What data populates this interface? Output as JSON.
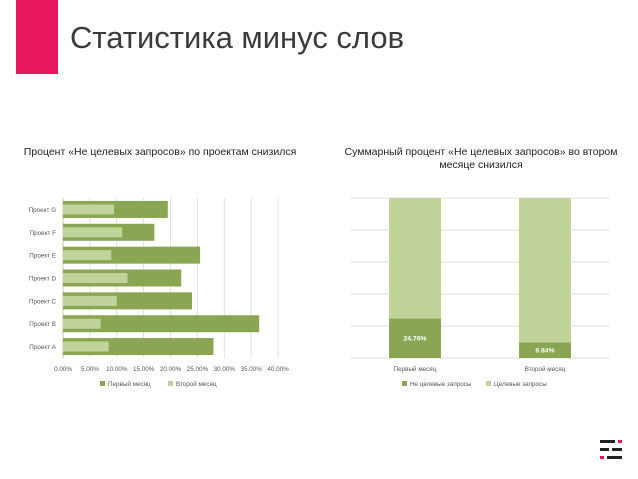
{
  "slide": {
    "title": "Статистика минус слов"
  },
  "colors": {
    "accent": "#e8175d",
    "dark_green": "#8aa653",
    "light_green": "#c0d39a"
  },
  "chart_data": [
    {
      "type": "bar",
      "orientation": "horizontal",
      "title": "Процент «Не целевых запросов» по проектам снизился",
      "categories": [
        "Проект A",
        "Проект B",
        "Проект C",
        "Проект D",
        "Проект E",
        "Проект F",
        "Проект G"
      ],
      "series": [
        {
          "name": "Первый месяц",
          "values": [
            28.0,
            36.5,
            24.0,
            22.0,
            25.5,
            17.0,
            19.5
          ]
        },
        {
          "name": "Второй месяц",
          "values": [
            8.5,
            7.0,
            10.0,
            12.0,
            9.0,
            11.0,
            9.5
          ]
        }
      ],
      "xlim": [
        0,
        40
      ],
      "x_ticks": [
        "0.00%",
        "5.00%",
        "10.00%",
        "15.00%",
        "20.00%",
        "25.00%",
        "30.00%",
        "35.00%",
        "40.00%"
      ],
      "grid": true,
      "legend": "bottom"
    },
    {
      "type": "bar",
      "stacked": true,
      "title": "Суммарный процент «Не целевых запросов» во втором месяце снизился",
      "categories": [
        "Первый месяц",
        "Второй месяц"
      ],
      "series": [
        {
          "name": "Не целевые запросы",
          "values": [
            24.76,
            9.84
          ]
        },
        {
          "name": "Целевые запросы",
          "values": [
            75.24,
            90.16
          ]
        }
      ],
      "data_labels": [
        "24.76%",
        "9.84%"
      ],
      "ylim": [
        0,
        100
      ],
      "grid": true,
      "legend": "bottom"
    }
  ]
}
